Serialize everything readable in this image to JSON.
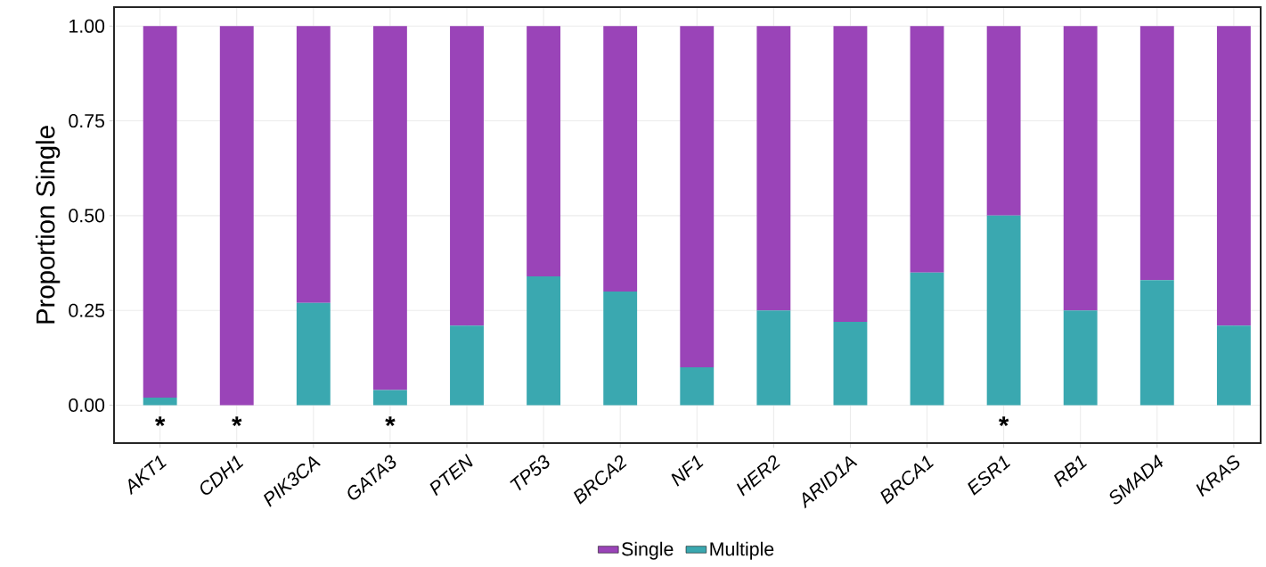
{
  "chart_data": {
    "type": "bar",
    "stacked": true,
    "ylabel": "Proportion Single",
    "categories": [
      "AKT1",
      "CDH1",
      "PIK3CA",
      "GATA3",
      "PTEN",
      "TP53",
      "BRCA2",
      "NF1",
      "HER2",
      "ARID1A",
      "BRCA1",
      "ESR1",
      "RB1",
      "SMAD4",
      "KRAS"
    ],
    "series": [
      {
        "name": "Multiple",
        "color": "#3aa8b0",
        "values": [
          0.02,
          0.0,
          0.27,
          0.04,
          0.21,
          0.34,
          0.3,
          0.1,
          0.25,
          0.22,
          0.35,
          0.5,
          0.25,
          0.33,
          0.21
        ]
      },
      {
        "name": "Single",
        "color": "#9a44b8",
        "values": [
          0.98,
          1.0,
          0.73,
          0.96,
          0.79,
          0.66,
          0.7,
          0.9,
          0.75,
          0.78,
          0.65,
          0.5,
          0.75,
          0.67,
          0.79
        ]
      }
    ],
    "ylim": [
      -0.1,
      1.05
    ],
    "yticks": [
      {
        "value": 0,
        "label": "0.00"
      },
      {
        "value": 0.25,
        "label": "0.25"
      },
      {
        "value": 0.5,
        "label": "0.50"
      },
      {
        "value": 0.75,
        "label": "0.75"
      },
      {
        "value": 1,
        "label": "1.00"
      }
    ],
    "annotations": [
      {
        "text": "*",
        "x": "AKT1",
        "y": 0
      },
      {
        "text": "*",
        "x": "CDH1",
        "y": 0
      },
      {
        "text": "*",
        "x": "GATA3",
        "y": 0
      },
      {
        "text": "*",
        "x": "ESR1",
        "y": 0
      }
    ],
    "grid": true,
    "legend": "bottom"
  }
}
